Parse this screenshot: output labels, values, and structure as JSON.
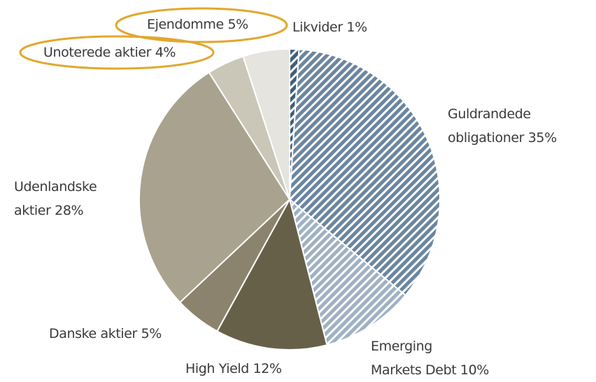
{
  "chart_data": {
    "type": "pie",
    "categories": [
      "Likvider",
      "Guldrandede\nobligationer",
      "Emerging\nMarkets Debt",
      "High Yield",
      "Danske aktier",
      "Udenlandske\naktier",
      "Unoterede aktier",
      "Ejendomme"
    ],
    "values": [
      1,
      35,
      10,
      12,
      5,
      28,
      4,
      5
    ],
    "value_labels": [
      "1%",
      "35%",
      "10%",
      "12%",
      "5%",
      "28%",
      "4%",
      "5%"
    ],
    "colors": [
      "#3f5f7c",
      "#6a86a0",
      "#9fb1c2",
      "#676049",
      "#8b836d",
      "#a8a28f",
      "#cac7b9",
      "#e5e4de"
    ],
    "hatched": [
      true,
      true,
      true,
      false,
      false,
      false,
      false,
      false
    ]
  }
}
